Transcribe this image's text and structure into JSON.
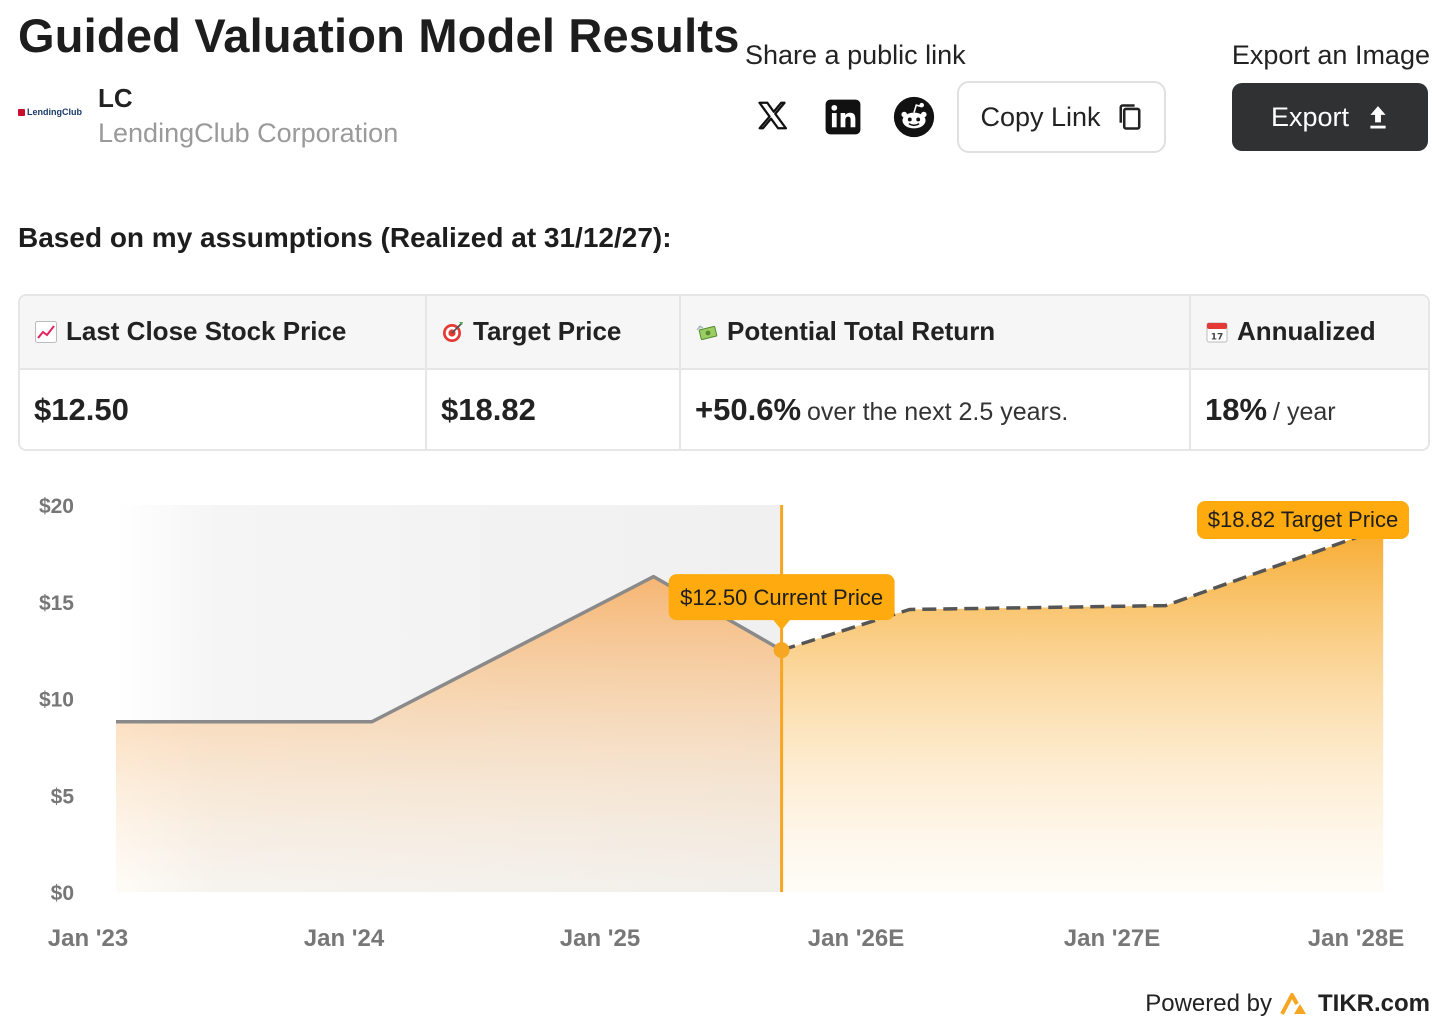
{
  "header": {
    "title": "Guided Valuation Model Results",
    "logo_text": "LendingClub",
    "ticker": "LC",
    "company": "LendingClub Corporation"
  },
  "share": {
    "label": "Share a public link",
    "icons": [
      "x-icon",
      "linkedin-icon",
      "reddit-icon"
    ],
    "copy_label": "Copy Link"
  },
  "export": {
    "label": "Export an Image",
    "button_label": "Export"
  },
  "assumptions_text": "Based on my assumptions (Realized at 31/12/27):",
  "metrics": [
    {
      "icon": "chart-increasing-icon",
      "label": "Last Close Stock Price",
      "value": "$12.50",
      "suffix": ""
    },
    {
      "icon": "target-icon",
      "label": "Target Price",
      "value": "$18.82",
      "suffix": ""
    },
    {
      "icon": "money-wings-icon",
      "label": "Potential Total Return",
      "value": "+50.6%",
      "suffix": "over the next 2.5 years."
    },
    {
      "icon": "calendar-icon",
      "label": "Annualized",
      "value": "18%",
      "suffix": "/ year"
    }
  ],
  "chart_data": {
    "type": "area",
    "x_ticks": [
      "Jan '23",
      "Jan '24",
      "Jan '25",
      "Jan '26E",
      "Jan '27E",
      "Jan '28E"
    ],
    "y_ticks": [
      "$20",
      "$15",
      "$10",
      "$5",
      "$0"
    ],
    "ylim": [
      0,
      20
    ],
    "series": [
      {
        "values": [
          [
            2023.0,
            8.8
          ],
          [
            2024.0,
            8.8
          ],
          [
            2025.1,
            16.3
          ],
          [
            2025.6,
            12.5
          ]
        ]
      },
      {
        "values": [
          [
            2025.6,
            12.5
          ],
          [
            2026.1,
            14.6
          ],
          [
            2027.1,
            14.8
          ],
          [
            2027.95,
            18.82
          ]
        ]
      }
    ],
    "current_label": "$12.50 Current Price",
    "target_label": "$18.82 Target Price",
    "colors": {
      "accent": "#f6a623",
      "historical_line": "#8a8a8a",
      "projection_line": "#555555"
    }
  },
  "footer": {
    "powered_by": "Powered by",
    "brand": "TIKR.com"
  }
}
